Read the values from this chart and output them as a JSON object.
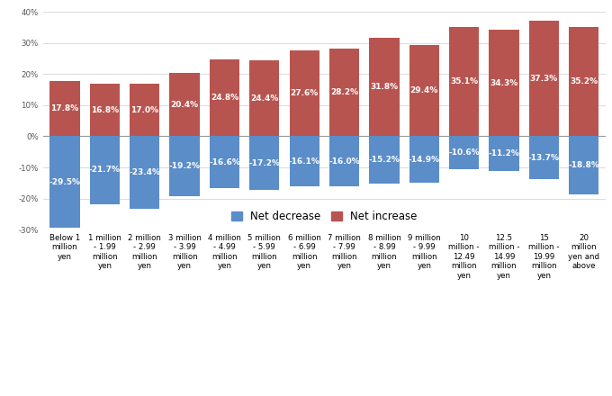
{
  "categories": [
    "Below 1\nmillion\nyen",
    "1 million\n- 1.99\nmillion\nyen",
    "2 million\n- 2.99\nmillion\nyen",
    "3 million\n- 3.99\nmillion\nyen",
    "4 million\n- 4.99\nmillion\nyen",
    "5 million\n- 5.99\nmillion\nyen",
    "6 million\n- 6.99\nmillion\nyen",
    "7 million\n- 7.99\nmillion\nyen",
    "8 million\n- 8.99\nmillion\nyen",
    "9 million\n- 9.99\nmillion\nyen",
    "10\nmillion -\n12.49\nmillion\nyen",
    "12.5\nmillion -\n14.99\nmillion\nyen",
    "15\nmillion -\n19.99\nmillion\nyen",
    "20\nmillion\nyen and\nabove"
  ],
  "net_increase": [
    17.8,
    16.8,
    17.0,
    20.4,
    24.8,
    24.4,
    27.6,
    28.2,
    31.8,
    29.4,
    35.1,
    34.3,
    37.3,
    35.2
  ],
  "net_decrease": [
    -29.5,
    -21.7,
    -23.4,
    -19.2,
    -16.6,
    -17.2,
    -16.1,
    -16.0,
    -15.2,
    -14.9,
    -10.6,
    -11.2,
    -13.7,
    -18.8
  ],
  "increase_color": "#B85450",
  "decrease_color": "#5B8DC8",
  "background_color": "#FFFFFF",
  "ylim": [
    -30,
    40
  ],
  "yticks": [
    -30,
    -20,
    -10,
    0,
    10,
    20,
    30,
    40
  ],
  "ytick_labels": [
    "-30%",
    "-20%",
    "-10%",
    "0%",
    "10%",
    "20%",
    "30%",
    "40%"
  ],
  "bar_width": 0.75,
  "label_fontsize": 6.5,
  "tick_fontsize": 6.2,
  "legend_fontsize": 8.5
}
